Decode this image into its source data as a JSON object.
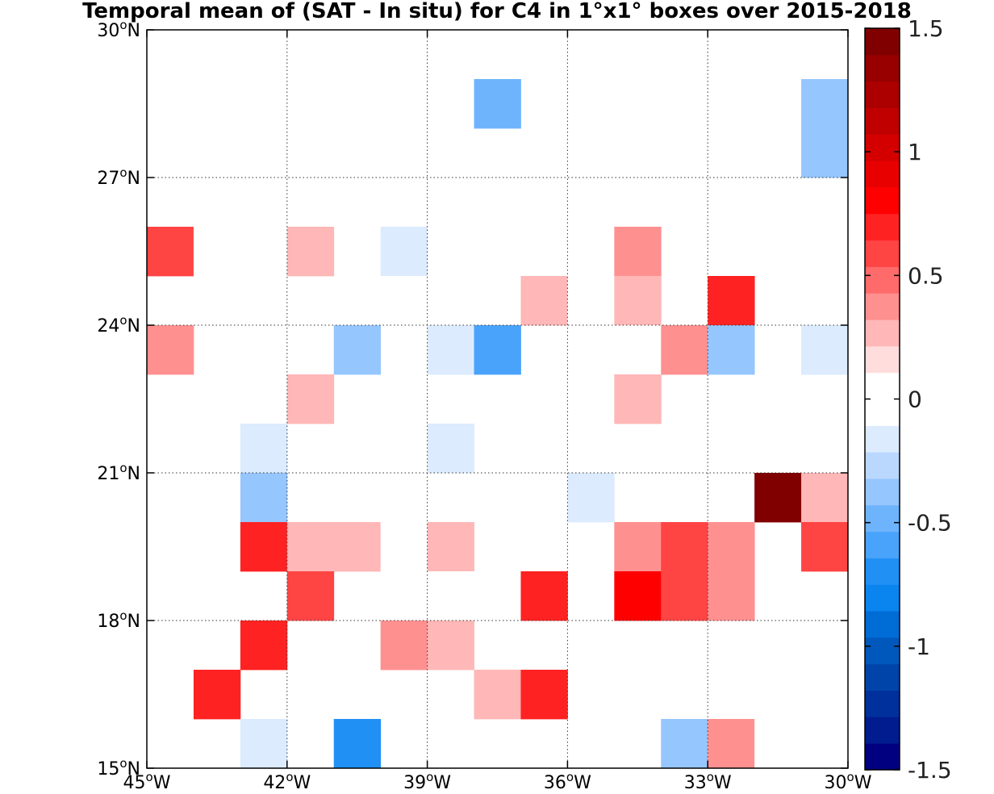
{
  "chart_data": {
    "type": "heatmap",
    "title": "Temporal mean of (SAT - In situ) for C4 in 1°x1° boxes over 2015-2018",
    "x_ticks": [
      {
        "value": -45,
        "label": "45",
        "hemi": "W"
      },
      {
        "value": -42,
        "label": "42",
        "hemi": "W"
      },
      {
        "value": -39,
        "label": "39",
        "hemi": "W"
      },
      {
        "value": -36,
        "label": "36",
        "hemi": "W"
      },
      {
        "value": -33,
        "label": "33",
        "hemi": "W"
      },
      {
        "value": -30,
        "label": "30",
        "hemi": "W"
      }
    ],
    "y_ticks": [
      {
        "value": 15,
        "label": "15",
        "hemi": "N"
      },
      {
        "value": 18,
        "label": "18",
        "hemi": "N"
      },
      {
        "value": 21,
        "label": "21",
        "hemi": "N"
      },
      {
        "value": 24,
        "label": "24",
        "hemi": "N"
      },
      {
        "value": 27,
        "label": "27",
        "hemi": "N"
      },
      {
        "value": 30,
        "label": "30",
        "hemi": "N"
      }
    ],
    "xlim": [
      -45,
      -30
    ],
    "ylim": [
      15,
      30
    ],
    "grid": true,
    "colorbar": {
      "range": [
        -1.5,
        1.5
      ],
      "ticks": [
        "1.5",
        "1",
        "0.5",
        "0",
        "-0.5",
        "-1",
        "-1.5"
      ],
      "tick_values": [
        1.5,
        1,
        0.5,
        0,
        -0.5,
        -1,
        -1.5
      ],
      "colors_low_to_high": [
        "#000080",
        "#001c8e",
        "#00309c",
        "#0044aa",
        "#0058bc",
        "#006cd6",
        "#0a84ef",
        "#2090f5",
        "#4aa3fa",
        "#6eb4fd",
        "#96c6fe",
        "#bad8fe",
        "#dcebfe",
        "#ffffff",
        "#ffffff",
        "#ffdddd",
        "#ffb7b7",
        "#ff9090",
        "#ff6a6a",
        "#ff4444",
        "#ff2222",
        "#ff0000",
        "#e80000",
        "#d40000",
        "#c00000",
        "#ac0000",
        "#980000",
        "#800000"
      ]
    },
    "cells": [
      {
        "lon": -38,
        "lat": 28,
        "value": -0.5
      },
      {
        "lon": -35,
        "lat": 27,
        "value": -0.1
      },
      {
        "lon": -31,
        "lat": 28,
        "value": -0.35
      },
      {
        "lon": -31,
        "lat": 27,
        "value": -0.35
      },
      {
        "lon": -41,
        "lat": 26,
        "value": 0.1
      },
      {
        "lon": -38,
        "lat": 26,
        "value": 0.1
      },
      {
        "lon": -45,
        "lat": 25,
        "value": 0.55
      },
      {
        "lon": -44,
        "lat": 25,
        "value": -0.1
      },
      {
        "lon": -42,
        "lat": 25,
        "value": 0.25
      },
      {
        "lon": -40,
        "lat": 25,
        "value": -0.2
      },
      {
        "lon": -38,
        "lat": 25,
        "value": 0.1
      },
      {
        "lon": -37,
        "lat": 25,
        "value": -0.1
      },
      {
        "lon": -35,
        "lat": 25,
        "value": 0.4
      },
      {
        "lon": -41,
        "lat": 24,
        "value": 0.1
      },
      {
        "lon": -40,
        "lat": 24,
        "value": -0.1
      },
      {
        "lon": -39,
        "lat": 24,
        "value": 0.1
      },
      {
        "lon": -37,
        "lat": 24,
        "value": 0.25
      },
      {
        "lon": -36,
        "lat": 24,
        "value": -0.1
      },
      {
        "lon": -35,
        "lat": 24,
        "value": 0.25
      },
      {
        "lon": -33,
        "lat": 24,
        "value": 0.7
      },
      {
        "lon": -45,
        "lat": 23,
        "value": 0.35
      },
      {
        "lon": -41,
        "lat": 23,
        "value": -0.35
      },
      {
        "lon": -39,
        "lat": 23,
        "value": -0.2
      },
      {
        "lon": -38,
        "lat": 23,
        "value": -0.6
      },
      {
        "lon": -35,
        "lat": 23,
        "value": 0.1
      },
      {
        "lon": -34,
        "lat": 23,
        "value": 0.4
      },
      {
        "lon": -33,
        "lat": 23,
        "value": -0.35
      },
      {
        "lon": -31,
        "lat": 23,
        "value": -0.2
      },
      {
        "lon": -42,
        "lat": 22,
        "value": 0.25
      },
      {
        "lon": -35,
        "lat": 22,
        "value": 0.25
      },
      {
        "lon": -43,
        "lat": 21,
        "value": -0.2
      },
      {
        "lon": -39,
        "lat": 21,
        "value": -0.2
      },
      {
        "lon": -36,
        "lat": 21,
        "value": -0.1
      },
      {
        "lon": -43,
        "lat": 20,
        "value": -0.35
      },
      {
        "lon": -41,
        "lat": 20,
        "value": -0.1
      },
      {
        "lon": -40,
        "lat": 20,
        "value": 0.1
      },
      {
        "lon": -38,
        "lat": 20,
        "value": 0.1
      },
      {
        "lon": -37,
        "lat": 20,
        "value": 0.1
      },
      {
        "lon": -36,
        "lat": 20,
        "value": -0.2
      },
      {
        "lon": -32,
        "lat": 20,
        "value": 1.45
      },
      {
        "lon": -31,
        "lat": 20,
        "value": 0.25
      },
      {
        "lon": -43,
        "lat": 19,
        "value": 0.7
      },
      {
        "lon": -42,
        "lat": 19,
        "value": 0.25
      },
      {
        "lon": -41,
        "lat": 19,
        "value": 0.25
      },
      {
        "lon": -40,
        "lat": 19,
        "value": 0.1
      },
      {
        "lon": -39,
        "lat": 19,
        "value": 0.25
      },
      {
        "lon": -37,
        "lat": 19,
        "value": 0.1
      },
      {
        "lon": -35,
        "lat": 19,
        "value": 0.4
      },
      {
        "lon": -34,
        "lat": 19,
        "value": 0.55
      },
      {
        "lon": -33,
        "lat": 19,
        "value": 0.4
      },
      {
        "lon": -31,
        "lat": 19,
        "value": 0.6
      },
      {
        "lon": -42,
        "lat": 18,
        "value": 0.55
      },
      {
        "lon": -39,
        "lat": 18,
        "value": 0.1
      },
      {
        "lon": -38,
        "lat": 18,
        "value": 0.1
      },
      {
        "lon": -37,
        "lat": 18,
        "value": 0.7
      },
      {
        "lon": -35,
        "lat": 18,
        "value": 0.8
      },
      {
        "lon": -34,
        "lat": 18,
        "value": 0.55
      },
      {
        "lon": -33,
        "lat": 18,
        "value": 0.4
      },
      {
        "lon": -43,
        "lat": 17,
        "value": 0.7
      },
      {
        "lon": -40,
        "lat": 17,
        "value": 0.4
      },
      {
        "lon": -39,
        "lat": 17,
        "value": 0.25
      },
      {
        "lon": -32,
        "lat": 17,
        "value": -0.1
      },
      {
        "lon": -44,
        "lat": 16,
        "value": 0.7
      },
      {
        "lon": -38,
        "lat": 16,
        "value": 0.25
      },
      {
        "lon": -37,
        "lat": 16,
        "value": 0.7
      },
      {
        "lon": -33,
        "lat": 16,
        "value": 0.1
      },
      {
        "lon": -43,
        "lat": 15,
        "value": -0.2
      },
      {
        "lon": -41,
        "lat": 15,
        "value": -0.65
      },
      {
        "lon": -35,
        "lat": 15,
        "value": -0.1
      },
      {
        "lon": -34,
        "lat": 15,
        "value": -0.35
      },
      {
        "lon": -33,
        "lat": 15,
        "value": 0.4
      },
      {
        "lon": -32,
        "lat": 15,
        "value": 0.1
      }
    ]
  }
}
